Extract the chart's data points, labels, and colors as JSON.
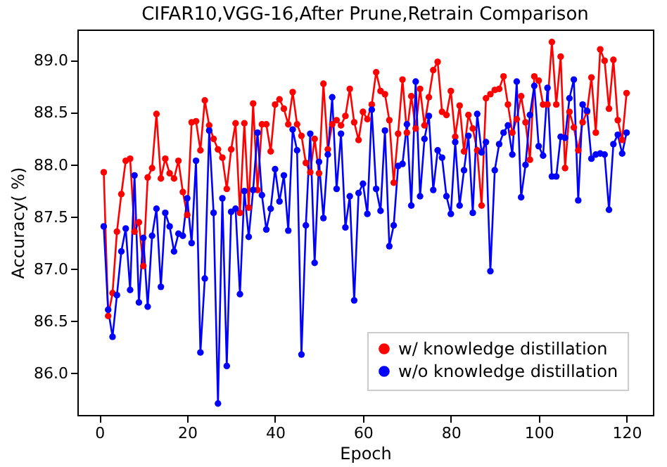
{
  "chart_data": {
    "type": "line",
    "title": "CIFAR10,VGG-16,After Prune,Retrain Comparison",
    "xlabel": "Epoch",
    "ylabel": "Accuracy( %)",
    "x": [
      1,
      2,
      3,
      4,
      5,
      6,
      7,
      8,
      9,
      10,
      11,
      12,
      13,
      14,
      15,
      16,
      17,
      18,
      19,
      20,
      21,
      22,
      23,
      24,
      25,
      26,
      27,
      28,
      29,
      30,
      31,
      32,
      33,
      34,
      35,
      36,
      37,
      38,
      39,
      40,
      41,
      42,
      43,
      44,
      45,
      46,
      47,
      48,
      49,
      50,
      51,
      52,
      53,
      54,
      55,
      56,
      57,
      58,
      59,
      60,
      61,
      62,
      63,
      64,
      65,
      66,
      67,
      68,
      69,
      70,
      71,
      72,
      73,
      74,
      75,
      76,
      77,
      78,
      79,
      80,
      81,
      82,
      83,
      84,
      85,
      86,
      87,
      88,
      89,
      90,
      91,
      92,
      93,
      94,
      95,
      96,
      97,
      98,
      99,
      100,
      101,
      102,
      103,
      104,
      105,
      106,
      107,
      108,
      109,
      110,
      111,
      112,
      113,
      114,
      115,
      116,
      117,
      118,
      119,
      120
    ],
    "series": [
      {
        "name": "w/   knowledge distillation",
        "color": "#ff0000",
        "values": [
          87.93,
          86.55,
          86.77,
          87.36,
          87.72,
          88.04,
          88.06,
          87.36,
          87.45,
          87.03,
          87.88,
          87.97,
          88.49,
          87.87,
          88.06,
          87.92,
          87.87,
          88.04,
          87.74,
          87.52,
          88.41,
          88.42,
          88.14,
          88.62,
          88.38,
          88.25,
          88.15,
          88.07,
          87.77,
          88.15,
          88.4,
          87.54,
          88.4,
          87.59,
          88.59,
          87.76,
          88.39,
          88.39,
          88.13,
          88.58,
          88.63,
          88.54,
          88.39,
          88.7,
          88.39,
          88.28,
          88.02,
          87.93,
          88.25,
          87.92,
          88.78,
          88.15,
          88.39,
          88.43,
          88.38,
          88.47,
          88.73,
          88.41,
          88.24,
          88.51,
          88.44,
          88.58,
          88.89,
          88.71,
          88.68,
          88.43,
          87.83,
          88.3,
          88.82,
          88.31,
          88.66,
          88.35,
          88.73,
          88.38,
          88.65,
          88.91,
          88.99,
          88.51,
          88.48,
          88.71,
          88.27,
          88.57,
          88.13,
          88.48,
          88.35,
          88.14,
          87.61,
          88.64,
          88.68,
          88.72,
          88.73,
          88.85,
          88.58,
          88.31,
          88.44,
          88.66,
          88.41,
          88.05,
          88.85,
          88.81,
          88.58,
          88.58,
          89.18,
          88.58,
          89.04,
          87.97,
          88.51,
          88.36,
          88.14,
          88.41,
          88.51,
          88.84,
          88.31,
          89.11,
          89.0,
          88.54,
          89.01,
          88.43,
          88.24,
          88.69
        ]
      },
      {
        "name": "w/o knowledge distillation",
        "color": "#0000ff",
        "values": [
          87.41,
          86.61,
          86.35,
          86.75,
          87.17,
          87.39,
          86.8,
          87.9,
          86.68,
          87.3,
          86.64,
          87.32,
          87.58,
          86.83,
          87.54,
          87.41,
          87.17,
          87.34,
          87.32,
          87.68,
          87.25,
          88.04,
          86.2,
          86.91,
          88.33,
          87.54,
          85.71,
          87.68,
          86.07,
          87.55,
          87.58,
          86.76,
          87.75,
          87.31,
          87.76,
          88.31,
          87.71,
          87.38,
          87.58,
          87.96,
          87.65,
          87.9,
          87.37,
          88.34,
          88.14,
          86.18,
          87.42,
          88.3,
          87.06,
          88.03,
          87.49,
          88.1,
          88.65,
          87.77,
          88.3,
          87.4,
          87.7,
          86.7,
          87.73,
          87.82,
          87.53,
          88.53,
          87.77,
          87.56,
          88.33,
          87.22,
          87.42,
          87.99,
          88.01,
          88.39,
          87.61,
          88.8,
          87.7,
          88.25,
          88.47,
          87.76,
          88.14,
          88.07,
          87.7,
          87.53,
          88.22,
          87.61,
          87.95,
          88.28,
          87.54,
          88.49,
          88.12,
          88.22,
          86.98,
          87.95,
          88.2,
          88.31,
          88.38,
          88.1,
          88.8,
          87.69,
          88.0,
          88.48,
          88.76,
          88.18,
          88.09,
          88.74,
          87.89,
          87.89,
          88.27,
          88.26,
          88.64,
          88.82,
          87.66,
          88.58,
          88.52,
          88.06,
          88.1,
          88.11,
          88.1,
          87.57,
          88.2,
          88.29,
          88.11,
          88.31
        ]
      }
    ],
    "xlim": [
      -5,
      126
    ],
    "xticks": [
      0,
      20,
      40,
      60,
      80,
      100,
      120
    ],
    "ylim": [
      85.6,
      89.3
    ],
    "yticks": [
      {
        "value": 86,
        "label": "86.0"
      },
      {
        "value": 86.5,
        "label": "86.5"
      },
      {
        "value": 87,
        "label": "87.0"
      },
      {
        "value": 87.5,
        "label": "87.5"
      },
      {
        "value": 88,
        "label": "88.0"
      },
      {
        "value": 88.5,
        "label": "88.5"
      },
      {
        "value": 89,
        "label": "89.0"
      }
    ],
    "legend": "bottom right",
    "marker": "circle",
    "line_style": "solid",
    "grid": false
  }
}
